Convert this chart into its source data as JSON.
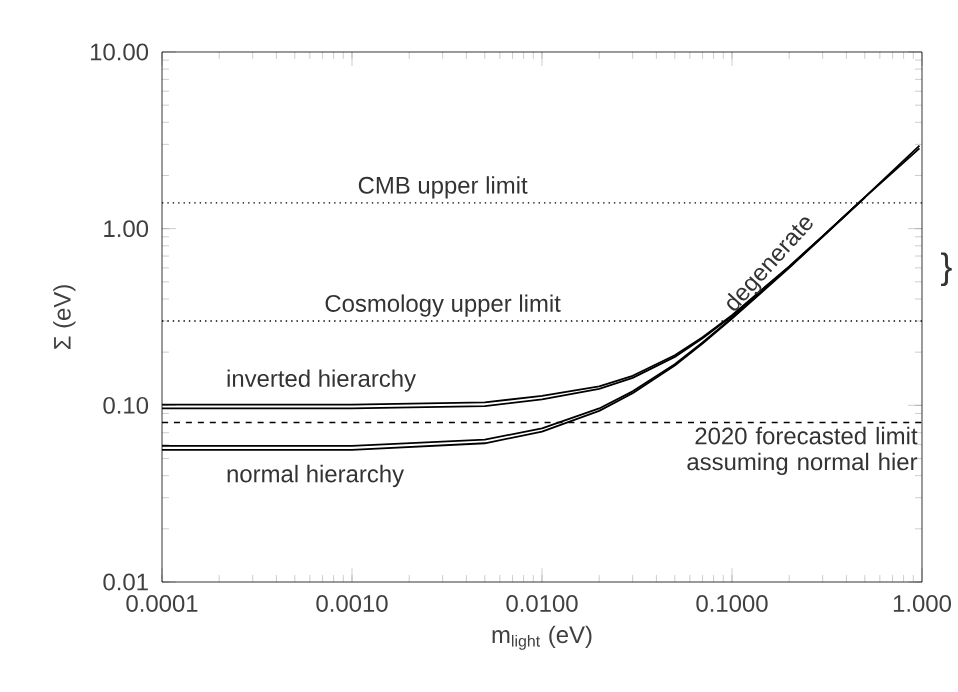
{
  "chart_data": {
    "type": "line",
    "xlabel": "m$_{light}$ (eV)",
    "ylabel": "Σ (eV)",
    "log": "xy",
    "grid": false,
    "marker": "none",
    "line_style": "solid",
    "xlim": [
      0.0001,
      1.0
    ],
    "ylim": [
      0.01,
      10
    ],
    "xticks": [
      {
        "value": 0.0001,
        "label": "0.0001"
      },
      {
        "value": 0.001,
        "label": "0.0010"
      },
      {
        "value": 0.01,
        "label": "0.0100"
      },
      {
        "value": 0.1,
        "label": "0.1000"
      },
      {
        "value": 1.0,
        "label": "1.000"
      }
    ],
    "yticks": [
      {
        "value": 0.01,
        "label": "0.01"
      },
      {
        "value": 0.1,
        "label": "0.10"
      },
      {
        "value": 1,
        "label": "1.00"
      },
      {
        "value": 10,
        "label": "10.00"
      }
    ],
    "x": [
      0.0001,
      0.001,
      0.005,
      0.01,
      0.02,
      0.03,
      0.05,
      0.07,
      0.1,
      0.2,
      0.3,
      0.5,
      0.97
    ],
    "series": [
      {
        "color": "#000000",
        "values": [
          0.101,
          0.101,
          0.104,
          0.113,
          0.128,
          0.147,
          0.192,
          0.243,
          0.324,
          0.612,
          0.908,
          1.51,
          2.95
        ]
      },
      {
        "color": "#000000",
        "x": [
          0.0001,
          0.001,
          0.005,
          0.01,
          0.02,
          0.03,
          0.05,
          0.07,
          0.1,
          0.2,
          0.3,
          0.5
        ],
        "values": [
          0.096,
          0.096,
          0.099,
          0.108,
          0.124,
          0.143,
          0.188,
          0.24,
          0.32,
          0.608,
          0.905,
          1.505
        ]
      },
      {
        "color": "#000000",
        "values": [
          0.059,
          0.059,
          0.064,
          0.074,
          0.096,
          0.12,
          0.171,
          0.227,
          0.312,
          0.606,
          0.904,
          1.504,
          2.85
        ]
      },
      {
        "color": "#000000",
        "x": [
          0.0001,
          0.001,
          0.005,
          0.01,
          0.02,
          0.03,
          0.05,
          0.07,
          0.1,
          0.2,
          0.3,
          0.5
        ],
        "values": [
          0.056,
          0.056,
          0.061,
          0.071,
          0.093,
          0.117,
          0.168,
          0.224,
          0.31,
          0.6,
          0.9,
          1.5
        ]
      }
    ],
    "ref_lines": [
      {
        "axis": "y",
        "value": 1.4,
        "label": "CMB upper limit",
        "line_style": "dotted",
        "color": "#000000"
      },
      {
        "axis": "y",
        "value": 0.3,
        "label": "Cosmology upper limit",
        "line_style": "dotted",
        "color": "#000000"
      },
      {
        "axis": "y",
        "value": 0.08,
        "label": "2020 forecasted limit assuming normal hier",
        "line_style": "dashed",
        "color": "#000000"
      }
    ],
    "annotations": [
      "inverted hierarchy",
      "normal hierarchy",
      "degenerate",
      "}"
    ]
  }
}
